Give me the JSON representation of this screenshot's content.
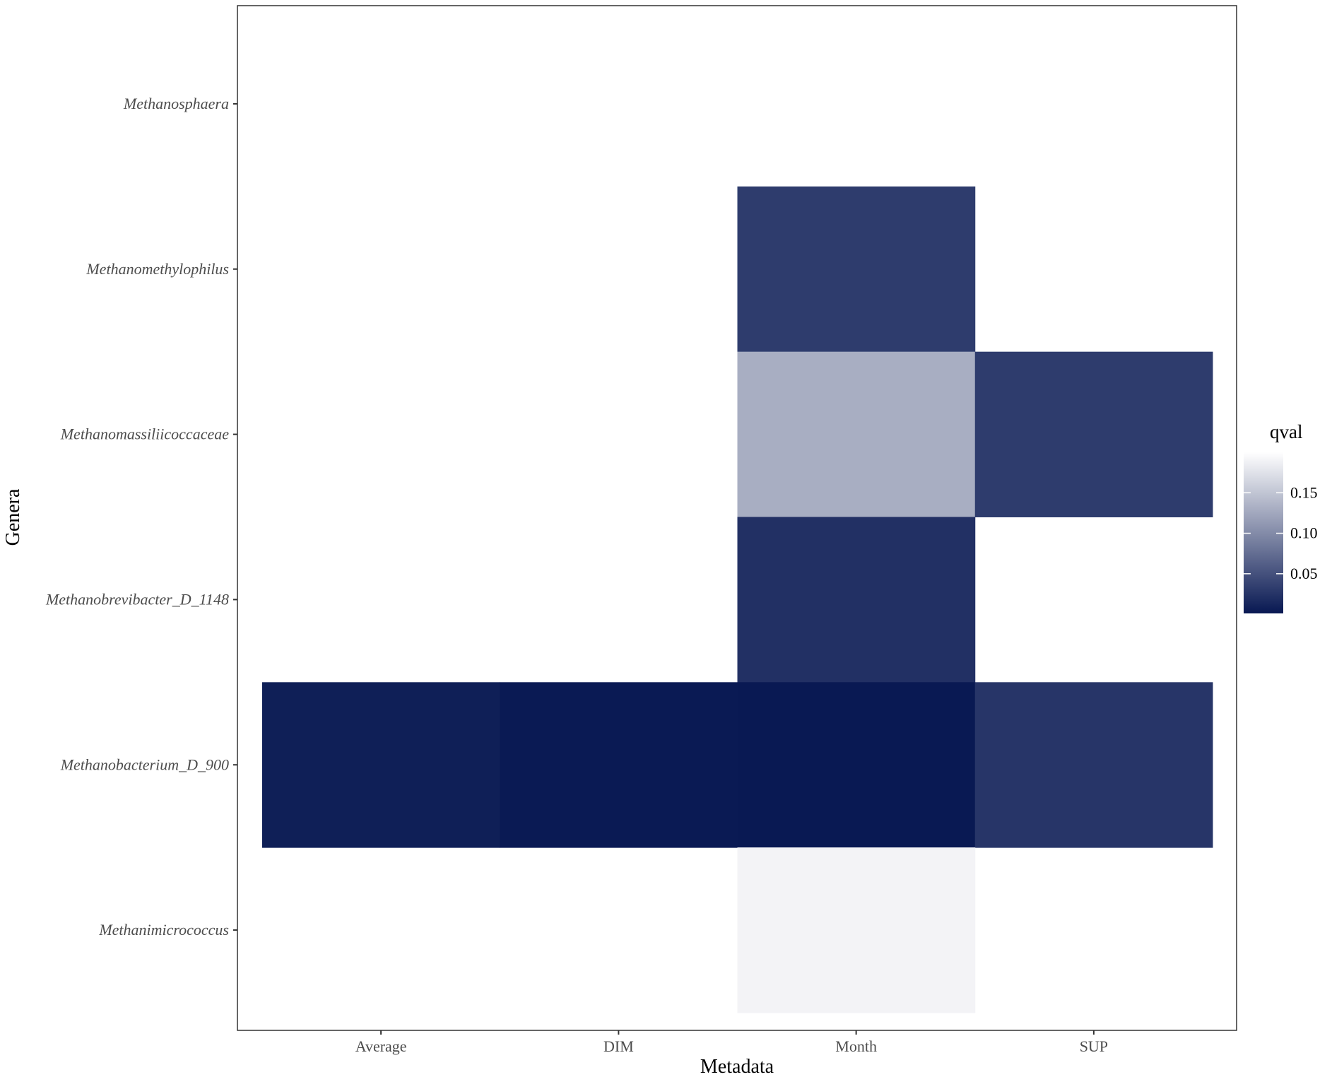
{
  "chart_data": {
    "type": "heatmap",
    "xlabel": "Metadata",
    "ylabel": "Genera",
    "x_categories": [
      "Average",
      "DIM",
      "Month",
      "SUP"
    ],
    "y_categories": [
      "Methanosphaera",
      "Methanomethylophilus",
      "Methanomassiliicoccaceae",
      "Methanobrevibacter_D_1148",
      "Methanobacterium_D_900",
      "Methanimicrococcus"
    ],
    "cells": [
      {
        "x": "Month",
        "y": "Methanomethylophilus",
        "value": 0.032
      },
      {
        "x": "Month",
        "y": "Methanomassiliicoccaceae",
        "value": 0.13
      },
      {
        "x": "SUP",
        "y": "Methanomassiliicoccaceae",
        "value": 0.032
      },
      {
        "x": "Month",
        "y": "Methanobrevibacter_D_1148",
        "value": 0.022
      },
      {
        "x": "Average",
        "y": "Methanobacterium_D_900",
        "value": 0.007
      },
      {
        "x": "DIM",
        "y": "Methanobacterium_D_900",
        "value": 0.003
      },
      {
        "x": "Month",
        "y": "Methanobacterium_D_900",
        "value": 0.002
      },
      {
        "x": "SUP",
        "y": "Methanobacterium_D_900",
        "value": 0.026
      },
      {
        "x": "Month",
        "y": "Methanimicrococcus",
        "value": 0.19
      }
    ],
    "legend": {
      "title": "qval",
      "ticks": [
        0.05,
        0.1,
        0.15
      ],
      "tick_labels": [
        "0.05",
        "0.10",
        "0.15"
      ],
      "range": [
        0.001,
        0.2
      ],
      "color_low": "#081852",
      "color_high": "#ffffff",
      "position": "right"
    },
    "grid": false
  }
}
